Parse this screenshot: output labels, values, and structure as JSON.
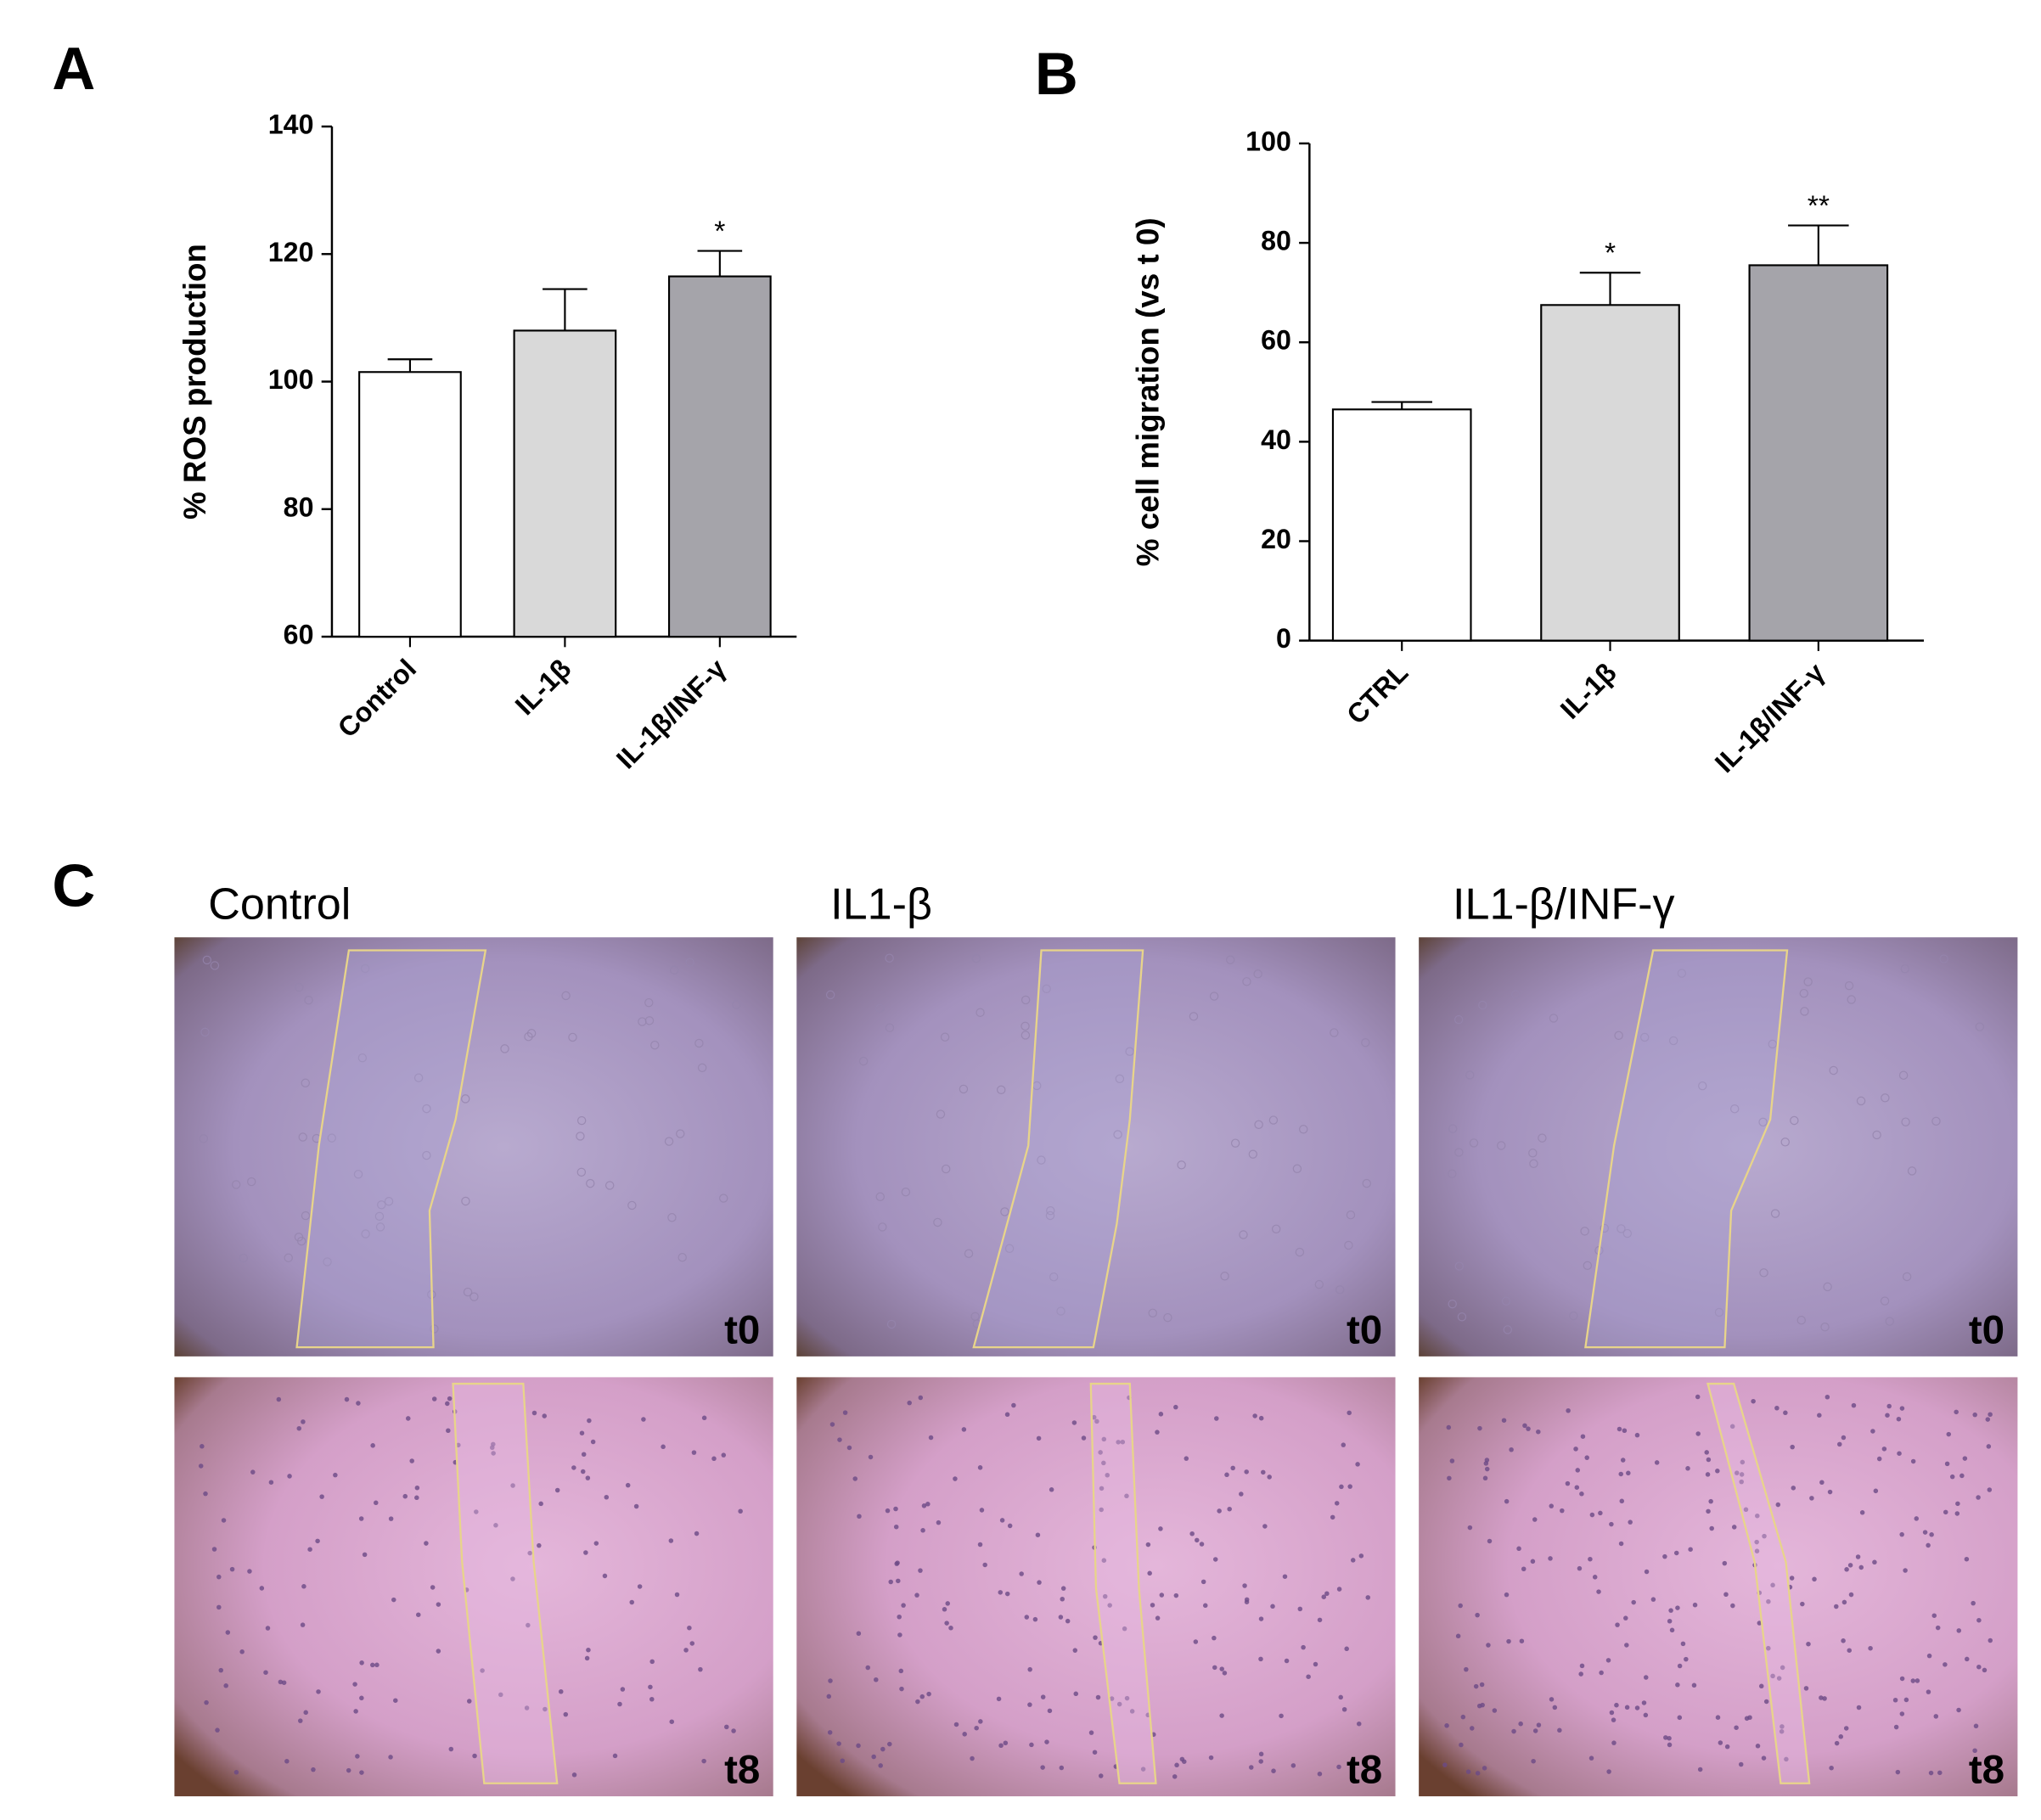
{
  "chart_data": [
    {
      "type": "bar",
      "panel_label": "A",
      "y_label": "% ROS production",
      "categories": [
        "Control",
        "IL-1β",
        "IL-1β/INF-γ"
      ],
      "values": [
        101.5,
        108,
        116.5
      ],
      "errors": [
        2,
        6.5,
        4
      ],
      "significance": [
        null,
        null,
        "*"
      ],
      "colors": [
        "#ffffff",
        "#d9d9d9",
        "#a5a4aa"
      ],
      "ylim": [
        60,
        140
      ],
      "yticks": [
        60,
        80,
        100,
        120,
        140
      ]
    },
    {
      "type": "bar",
      "panel_label": "B",
      "y_label": "% cell migration (vs t 0)",
      "categories": [
        "CTRL",
        "IL-1β",
        "IL-1β/INF-γ"
      ],
      "values": [
        46.5,
        67.5,
        75.5
      ],
      "errors": [
        1.5,
        6.5,
        8
      ],
      "significance": [
        null,
        "*",
        "**"
      ],
      "colors": [
        "#ffffff",
        "#d9d9d9",
        "#a5a4aa"
      ],
      "ylim": [
        0,
        100
      ],
      "yticks": [
        0,
        20,
        40,
        60,
        80,
        100
      ]
    }
  ],
  "panel_c": {
    "panel_label": "C",
    "columns": [
      "Control",
      "IL1-β",
      "IL1-β/INF-γ"
    ],
    "rows": [
      {
        "time": "t0"
      },
      {
        "time": "t8"
      }
    ]
  }
}
